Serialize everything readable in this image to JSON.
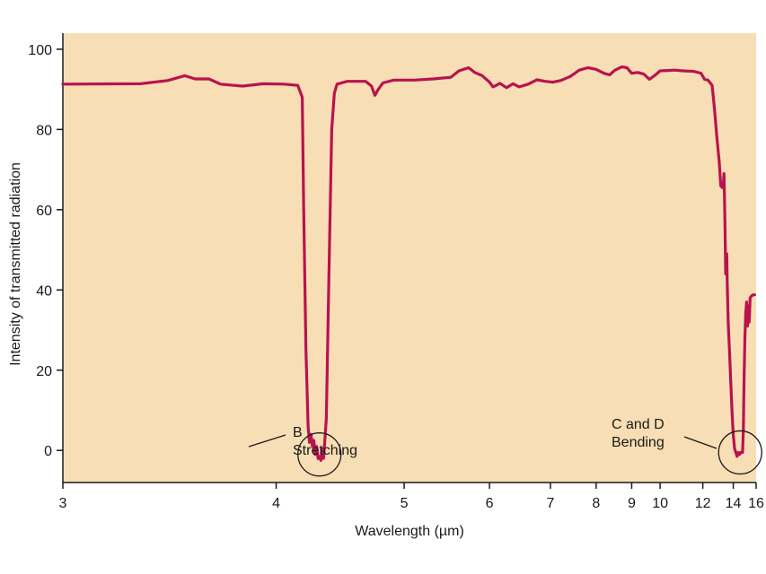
{
  "chart_data": {
    "type": "line",
    "xlabel": "Wavelength (µm)",
    "ylabel": "Intensity of transmitted radiation",
    "xscale": "reciprocal",
    "xlim": [
      3,
      16
    ],
    "ylim": [
      -8,
      104
    ],
    "x_ticks": [
      3,
      4,
      5,
      6,
      7,
      8,
      9,
      10,
      12,
      14,
      16
    ],
    "y_ticks": [
      0,
      20,
      40,
      60,
      80,
      100
    ],
    "colors": {
      "plot_background": "#f8deb4",
      "line": "#b8134f",
      "axis": "#1a1a1a"
    },
    "series": [
      {
        "points": [
          [
            3.0,
            91.3
          ],
          [
            3.3,
            91.4
          ],
          [
            3.42,
            92.2
          ],
          [
            3.5,
            93.4
          ],
          [
            3.55,
            92.6
          ],
          [
            3.62,
            92.6
          ],
          [
            3.68,
            91.3
          ],
          [
            3.8,
            90.8
          ],
          [
            3.92,
            91.4
          ],
          [
            4.05,
            91.3
          ],
          [
            4.14,
            91.0
          ],
          [
            4.17,
            88.0
          ],
          [
            4.18,
            60.0
          ],
          [
            4.195,
            25.0
          ],
          [
            4.21,
            6.0
          ],
          [
            4.22,
            2.0
          ],
          [
            4.23,
            4.0
          ],
          [
            4.24,
            1.0
          ],
          [
            4.25,
            2.5
          ],
          [
            4.26,
            -1.0
          ],
          [
            4.27,
            1.0
          ],
          [
            4.28,
            -2.0
          ],
          [
            4.29,
            -1.5
          ],
          [
            4.3,
            -2.5
          ],
          [
            4.31,
            0.5
          ],
          [
            4.32,
            -2.0
          ],
          [
            4.34,
            8.0
          ],
          [
            4.36,
            45.0
          ],
          [
            4.38,
            80.0
          ],
          [
            4.4,
            89.0
          ],
          [
            4.42,
            91.3
          ],
          [
            4.5,
            92.0
          ],
          [
            4.65,
            92.0
          ],
          [
            4.7,
            90.8
          ],
          [
            4.73,
            88.5
          ],
          [
            4.76,
            90.0
          ],
          [
            4.8,
            91.6
          ],
          [
            4.9,
            92.3
          ],
          [
            5.1,
            92.3
          ],
          [
            5.3,
            92.6
          ],
          [
            5.5,
            93.0
          ],
          [
            5.6,
            94.6
          ],
          [
            5.72,
            95.4
          ],
          [
            5.8,
            94.2
          ],
          [
            5.9,
            93.4
          ],
          [
            6.0,
            91.8
          ],
          [
            6.05,
            90.6
          ],
          [
            6.15,
            91.5
          ],
          [
            6.25,
            90.4
          ],
          [
            6.35,
            91.4
          ],
          [
            6.45,
            90.6
          ],
          [
            6.6,
            91.3
          ],
          [
            6.75,
            92.4
          ],
          [
            6.9,
            92.0
          ],
          [
            7.05,
            91.8
          ],
          [
            7.2,
            92.2
          ],
          [
            7.4,
            93.2
          ],
          [
            7.6,
            94.8
          ],
          [
            7.8,
            95.4
          ],
          [
            8.0,
            95.0
          ],
          [
            8.2,
            94.0
          ],
          [
            8.35,
            93.6
          ],
          [
            8.5,
            94.8
          ],
          [
            8.7,
            95.6
          ],
          [
            8.85,
            95.4
          ],
          [
            9.0,
            94.0
          ],
          [
            9.2,
            94.2
          ],
          [
            9.4,
            93.8
          ],
          [
            9.6,
            92.5
          ],
          [
            9.8,
            93.5
          ],
          [
            10.0,
            94.6
          ],
          [
            10.3,
            94.7
          ],
          [
            10.6,
            94.8
          ],
          [
            11.0,
            94.6
          ],
          [
            11.5,
            94.5
          ],
          [
            11.9,
            94.0
          ],
          [
            12.1,
            92.5
          ],
          [
            12.3,
            92.3
          ],
          [
            12.55,
            91.0
          ],
          [
            12.7,
            85.0
          ],
          [
            12.85,
            78.0
          ],
          [
            13.0,
            72.0
          ],
          [
            13.1,
            66.0
          ],
          [
            13.2,
            65.5
          ],
          [
            13.28,
            66.5
          ],
          [
            13.32,
            69.0
          ],
          [
            13.36,
            63.0
          ],
          [
            13.4,
            55.0
          ],
          [
            13.44,
            44.0
          ],
          [
            13.48,
            45.0
          ],
          [
            13.52,
            49.0
          ],
          [
            13.56,
            41.0
          ],
          [
            13.62,
            32.0
          ],
          [
            13.7,
            26.0
          ],
          [
            13.8,
            18.0
          ],
          [
            13.9,
            10.0
          ],
          [
            14.0,
            4.0
          ],
          [
            14.1,
            0.5
          ],
          [
            14.2,
            -0.5
          ],
          [
            14.3,
            -1.5
          ],
          [
            14.4,
            -0.5
          ],
          [
            14.5,
            -1.0
          ],
          [
            14.6,
            -0.5
          ],
          [
            14.75,
            -0.5
          ],
          [
            14.82,
            5.0
          ],
          [
            14.88,
            18.0
          ],
          [
            14.95,
            28.0
          ],
          [
            15.02,
            34.0
          ],
          [
            15.1,
            37.0
          ],
          [
            15.18,
            31.0
          ],
          [
            15.26,
            36.0
          ],
          [
            15.34,
            32.0
          ],
          [
            15.42,
            38.0
          ],
          [
            15.55,
            38.5
          ],
          [
            15.7,
            38.8
          ],
          [
            15.85,
            38.8
          ]
        ]
      }
    ],
    "annotations": [
      {
        "lines": [
          "B",
          "Stretching"
        ],
        "circle_at": [
          4.29,
          -1
        ]
      },
      {
        "lines": [
          "C and D",
          "Bending"
        ],
        "circle_at": [
          14.55,
          -0.5
        ]
      }
    ]
  }
}
